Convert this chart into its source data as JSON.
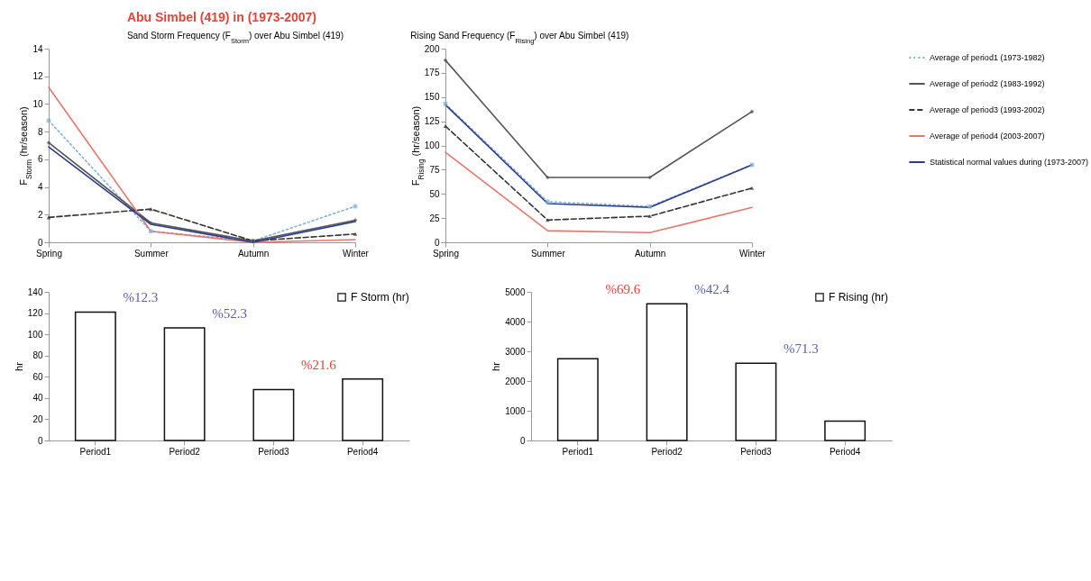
{
  "chart_data": [
    {
      "type": "line",
      "title": "Abu Simbel (419) in (1973-2007)",
      "subtitle": "Sand Storm Frequency (F$_{Storm}$) over Abu Simbel  (419)",
      "ylabel": "F$_{Storm}$ (hr/season)",
      "categories": [
        "Spring",
        "Summer",
        "Autumn",
        "Winter"
      ],
      "ylim": [
        0,
        14
      ],
      "yticks": [
        0,
        2,
        4,
        6,
        8,
        10,
        12,
        14
      ],
      "legend": "right",
      "series": [
        {
          "name": "Average of period1 (1973-1982)",
          "color": "#7fb2d8",
          "line_style": "dotted",
          "marker": "square",
          "values": [
            8.8,
            0.8,
            0.1,
            2.6
          ]
        },
        {
          "name": "Average of period2 (1983-1992)",
          "color": "#555555",
          "line_style": "solid",
          "marker": "diamond",
          "values": [
            7.2,
            1.4,
            0.1,
            1.6
          ]
        },
        {
          "name": "Average of period3 (1993-2002)",
          "color": "#333333",
          "line_style": "dashed",
          "marker": "triangle",
          "values": [
            1.8,
            2.4,
            0.1,
            0.6
          ]
        },
        {
          "name": "Average of period4 (2003-2007)",
          "color": "#e8766a",
          "line_style": "solid",
          "marker": "none",
          "values": [
            11.2,
            0.8,
            0,
            0.2
          ]
        },
        {
          "name": "Statistical normal values during (1973-2007)",
          "color": "#2b3a8f",
          "line_style": "solid",
          "marker": "none",
          "values": [
            6.9,
            1.3,
            0,
            1.5
          ]
        }
      ]
    },
    {
      "type": "line",
      "title": "Rising Sand Frequency (F$_{Rising}$) over Abu Simbel (419)",
      "ylabel": "F$_{Rising}$ (hr/season)",
      "categories": [
        "Spring",
        "Summer",
        "Autumn",
        "Winter"
      ],
      "ylim": [
        0,
        200
      ],
      "yticks": [
        0,
        25,
        50,
        75,
        100,
        125,
        150,
        175,
        200
      ],
      "legend": "right",
      "series": [
        {
          "name": "Average of period1 (1973-1982)",
          "color": "#7fb2d8",
          "line_style": "dotted",
          "marker": "square",
          "values": [
            143,
            42,
            37,
            80
          ]
        },
        {
          "name": "Average of period2 (1983-1992)",
          "color": "#555555",
          "line_style": "solid",
          "marker": "diamond",
          "values": [
            188,
            67,
            67,
            135
          ]
        },
        {
          "name": "Average of period3 (1993-2002)",
          "color": "#333333",
          "line_style": "dashed",
          "marker": "triangle",
          "values": [
            120,
            23,
            27,
            56
          ]
        },
        {
          "name": "Average of period4 (2003-2007)",
          "color": "#e8766a",
          "line_style": "solid",
          "marker": "none",
          "values": [
            93,
            12,
            10,
            36
          ]
        },
        {
          "name": "Statistical normal values during (1973-2007)",
          "color": "#2b3a8f",
          "line_style": "solid",
          "marker": "none",
          "values": [
            142,
            40,
            36,
            80
          ]
        }
      ]
    },
    {
      "type": "bar",
      "ylabel": "hr",
      "categories": [
        "Period1",
        "Period2",
        "Period3",
        "Period4"
      ],
      "ylim": [
        0,
        140
      ],
      "yticks": [
        0,
        20,
        40,
        60,
        80,
        100,
        120,
        140
      ],
      "legend": "top right",
      "annotations": [
        "%12.3",
        "%52.3",
        "%21.6"
      ],
      "series": [
        {
          "name": "F Storm (hr)",
          "color": "#ffffff",
          "values": [
            121,
            106,
            48,
            58
          ]
        }
      ]
    },
    {
      "type": "bar",
      "ylabel": "hr",
      "categories": [
        "Period1",
        "Period2",
        "Period3",
        "Period4"
      ],
      "ylim": [
        0,
        5000
      ],
      "yticks": [
        0,
        1000,
        2000,
        3000,
        4000,
        5000
      ],
      "legend": "top right",
      "annotations": [
        "%69.6",
        "%42.4",
        "%71.3"
      ],
      "series": [
        {
          "name": "F Rising  (hr)",
          "color": "#ffffff",
          "values": [
            2750,
            4600,
            2600,
            650
          ]
        }
      ]
    }
  ]
}
